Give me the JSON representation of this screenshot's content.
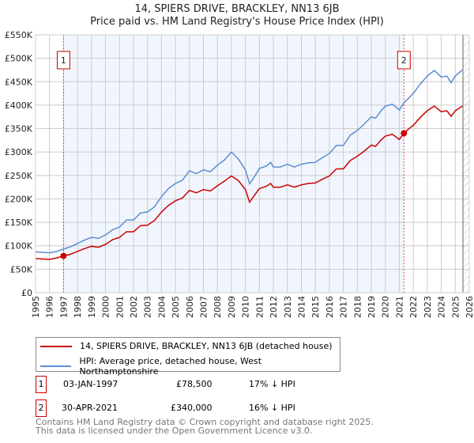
{
  "chart_data": {
    "type": "line",
    "title": "14, SPIERS DRIVE, BRACKLEY, NN13 6JB",
    "subtitle": "Price paid vs. HM Land Registry's House Price Index (HPI)",
    "xlim": [
      1995,
      2026
    ],
    "ylim": [
      0,
      550000
    ],
    "yticks": [
      "£0",
      "£50K",
      "£100K",
      "£150K",
      "£200K",
      "£250K",
      "£300K",
      "£350K",
      "£400K",
      "£450K",
      "£500K",
      "£550K"
    ],
    "xticks": [
      "1995",
      "1996",
      "1997",
      "1998",
      "1999",
      "2000",
      "2001",
      "2002",
      "2003",
      "2004",
      "2005",
      "2006",
      "2007",
      "2008",
      "2009",
      "2010",
      "2011",
      "2012",
      "2013",
      "2014",
      "2015",
      "2016",
      "2017",
      "2018",
      "2019",
      "2020",
      "2021",
      "2022",
      "2023",
      "2024",
      "2025",
      "2026"
    ],
    "grid": true,
    "x": [
      1995,
      1995.5,
      1996,
      1996.5,
      1997,
      1997.5,
      1998,
      1998.5,
      1999,
      1999.5,
      2000,
      2000.5,
      2001,
      2001.5,
      2002,
      2002.5,
      2003,
      2003.5,
      2004,
      2004.5,
      2005,
      2005.5,
      2006,
      2006.5,
      2007,
      2007.5,
      2008,
      2008.5,
      2009,
      2009.5,
      2010,
      2010.3,
      2010.7,
      2011,
      2011.5,
      2011.8,
      2012,
      2012.5,
      2013,
      2013.5,
      2014,
      2014.5,
      2015,
      2015.5,
      2016,
      2016.5,
      2017,
      2017.5,
      2018,
      2018.5,
      2019,
      2019.3,
      2019.7,
      2020,
      2020.5,
      2021,
      2021.33,
      2021.7,
      2022,
      2022.5,
      2023,
      2023.5,
      2024,
      2024.4,
      2024.7,
      2025,
      2025.5
    ],
    "series": [
      {
        "name": "14, SPIERS DRIVE, BRACKLEY, NN13 6JB (detached house)",
        "color": "#cc0000",
        "values": [
          73,
          72,
          71,
          74,
          78.5,
          82,
          88,
          94,
          99,
          97,
          103,
          113,
          118,
          130,
          130,
          143,
          144,
          154,
          172,
          186,
          196,
          202,
          218,
          213,
          220,
          217,
          228,
          238,
          249,
          239,
          220,
          193,
          210,
          222,
          227,
          233,
          225,
          225,
          230,
          225,
          230,
          233,
          234,
          242,
          249,
          264,
          264,
          282,
          291,
          302,
          315,
          312,
          326,
          334,
          338,
          327,
          340,
          350,
          357,
          374,
          388,
          398,
          386,
          388,
          376,
          388,
          398
        ]
      },
      {
        "name": "HPI: Average price, detached house, West Northamptonshire",
        "color": "#5b8fd0",
        "values": [
          87,
          86,
          85,
          88,
          93,
          98,
          105,
          112,
          118,
          116,
          123,
          134,
          140,
          155,
          155,
          170,
          172,
          183,
          205,
          222,
          233,
          240,
          260,
          254,
          262,
          258,
          272,
          283,
          300,
          285,
          262,
          232,
          250,
          265,
          270,
          278,
          268,
          268,
          274,
          268,
          274,
          277,
          278,
          288,
          297,
          314,
          314,
          336,
          346,
          360,
          375,
          372,
          388,
          398,
          402,
          390,
          405,
          416,
          425,
          445,
          462,
          474,
          460,
          462,
          448,
          462,
          475
        ]
      }
    ],
    "value_unit": "thousands GBP",
    "sales": [
      {
        "label": "1",
        "year": 1997.0,
        "price": 78.5,
        "date": "03-JAN-1997",
        "price_text": "£78,500",
        "hpi_text": "17% ↓ HPI"
      },
      {
        "label": "2",
        "year": 2021.33,
        "price": 340,
        "date": "30-APR-2021",
        "price_text": "£340,000",
        "hpi_text": "16% ↓ HPI"
      }
    ],
    "data_end_year": 2025.55
  },
  "footer": {
    "line1": "Contains HM Land Registry data © Crown copyright and database right 2025.",
    "line2": "This data is licensed under the Open Government Licence v3.0."
  }
}
